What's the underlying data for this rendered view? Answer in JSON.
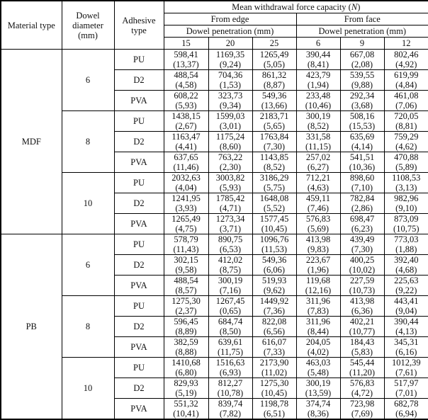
{
  "table": {
    "headers": {
      "material_type": "Material type",
      "dowel_diameter": "Dowel diameter (mm)",
      "adhesive_type": "Adhesive type",
      "capacity_prefix": "Mean withdrawal force capacity (",
      "capacity_symbol": "N",
      "capacity_suffix": ")",
      "from_edge": "From edge",
      "from_face": "From face",
      "penetration_edge": "Dowel penetration (mm)",
      "penetration_face": "Dowel penetration (mm)",
      "depths": [
        "15",
        "20",
        "25",
        "6",
        "9",
        "12"
      ]
    },
    "materials": [
      {
        "name": "MDF",
        "groups": [
          {
            "diameter": "6",
            "rows": [
              {
                "adhesive": "PU",
                "cells": [
                  {
                    "mean": "598,41",
                    "cv": "(13,37)"
                  },
                  {
                    "mean": "1169,35",
                    "cv": "(9,24)"
                  },
                  {
                    "mean": "1265,49",
                    "cv": "(5,05)"
                  },
                  {
                    "mean": "390,44",
                    "cv": "(8,41)"
                  },
                  {
                    "mean": "667,08",
                    "cv": "(2,08)"
                  },
                  {
                    "mean": "802,46",
                    "cv": "(4,92)"
                  }
                ]
              },
              {
                "adhesive": "D2",
                "cells": [
                  {
                    "mean": "488,54",
                    "cv": "(4,58)"
                  },
                  {
                    "mean": "704,36",
                    "cv": "(1,53)"
                  },
                  {
                    "mean": "861,32",
                    "cv": "(8,87)"
                  },
                  {
                    "mean": "423,79",
                    "cv": "(1,94)"
                  },
                  {
                    "mean": "539,55",
                    "cv": "(9,88)"
                  },
                  {
                    "mean": "619,99",
                    "cv": "(4,84)"
                  }
                ]
              },
              {
                "adhesive": "PVA",
                "cells": [
                  {
                    "mean": "608,22",
                    "cv": "(5,93)"
                  },
                  {
                    "mean": "323,73",
                    "cv": "(9,34)"
                  },
                  {
                    "mean": "549,36",
                    "cv": "(13,66)"
                  },
                  {
                    "mean": "233,48",
                    "cv": "(10,46)"
                  },
                  {
                    "mean": "292,34",
                    "cv": "(3,68)"
                  },
                  {
                    "mean": "461,08",
                    "cv": "(7,06)"
                  }
                ]
              }
            ]
          },
          {
            "diameter": "8",
            "rows": [
              {
                "adhesive": "PU",
                "cells": [
                  {
                    "mean": "1438,15",
                    "cv": "(2,67)"
                  },
                  {
                    "mean": "1599,03",
                    "cv": "(3,01)"
                  },
                  {
                    "mean": "2183,71",
                    "cv": "(5,65)"
                  },
                  {
                    "mean": "300,19",
                    "cv": "(8,52)"
                  },
                  {
                    "mean": "508,16",
                    "cv": "(15,53)"
                  },
                  {
                    "mean": "720,05",
                    "cv": "(8,81)"
                  }
                ]
              },
              {
                "adhesive": "D2",
                "cells": [
                  {
                    "mean": "1163,47",
                    "cv": "(4,41)"
                  },
                  {
                    "mean": "1175,24",
                    "cv": "(8,60)"
                  },
                  {
                    "mean": "1763,84",
                    "cv": "(7,30)"
                  },
                  {
                    "mean": "331,58",
                    "cv": "(11,15)"
                  },
                  {
                    "mean": "635,69",
                    "cv": "(4,14)"
                  },
                  {
                    "mean": "759,29",
                    "cv": "(4,62)"
                  }
                ]
              },
              {
                "adhesive": "PVA",
                "cells": [
                  {
                    "mean": "637,65",
                    "cv": "(11,46)"
                  },
                  {
                    "mean": "763,22",
                    "cv": "(2,30)"
                  },
                  {
                    "mean": "1143,85",
                    "cv": "(8,52)"
                  },
                  {
                    "mean": "257,02",
                    "cv": "(6,27)"
                  },
                  {
                    "mean": "541,51",
                    "cv": "(10,36)"
                  },
                  {
                    "mean": "470,88",
                    "cv": "(5,89)"
                  }
                ]
              }
            ]
          },
          {
            "diameter": "10",
            "rows": [
              {
                "adhesive": "PU",
                "cells": [
                  {
                    "mean": "2032,63",
                    "cv": "(4,04)"
                  },
                  {
                    "mean": "3003,82",
                    "cv": "(5,93)"
                  },
                  {
                    "mean": "3186,29",
                    "cv": "(5,75)"
                  },
                  {
                    "mean": "712,21",
                    "cv": "(4,63)"
                  },
                  {
                    "mean": "898,60",
                    "cv": "(7,10)"
                  },
                  {
                    "mean": "1108,53",
                    "cv": "(3,13)"
                  }
                ]
              },
              {
                "adhesive": "D2",
                "cells": [
                  {
                    "mean": "1241,95",
                    "cv": "(3,93)"
                  },
                  {
                    "mean": "1785,42",
                    "cv": "(4,71)"
                  },
                  {
                    "mean": "1648,08",
                    "cv": "(5,52)"
                  },
                  {
                    "mean": "459,11",
                    "cv": "(7,46)"
                  },
                  {
                    "mean": "782,84",
                    "cv": "(2,86)"
                  },
                  {
                    "mean": "982,96",
                    "cv": "(9,10)"
                  }
                ]
              },
              {
                "adhesive": "PVA",
                "cells": [
                  {
                    "mean": "1265,49",
                    "cv": "(4,75)"
                  },
                  {
                    "mean": "1273,34",
                    "cv": "(3,71)"
                  },
                  {
                    "mean": "1577,45",
                    "cv": "(10,45)"
                  },
                  {
                    "mean": "576,83",
                    "cv": "(5,69)"
                  },
                  {
                    "mean": "698,47",
                    "cv": "(6,23)"
                  },
                  {
                    "mean": "873,09",
                    "cv": "(10,75)"
                  }
                ]
              }
            ]
          }
        ]
      },
      {
        "name": "PB",
        "groups": [
          {
            "diameter": "6",
            "rows": [
              {
                "adhesive": "PU",
                "cells": [
                  {
                    "mean": "578,79",
                    "cv": "(11,43)"
                  },
                  {
                    "mean": "890,75",
                    "cv": "(6,53)"
                  },
                  {
                    "mean": "1096,76",
                    "cv": "(11,53)"
                  },
                  {
                    "mean": "413,98",
                    "cv": "(9,83)"
                  },
                  {
                    "mean": "439,49",
                    "cv": "(7,30)"
                  },
                  {
                    "mean": "773,03",
                    "cv": "(1,88)"
                  }
                ]
              },
              {
                "adhesive": "D2",
                "cells": [
                  {
                    "mean": "302,15",
                    "cv": "(9,58)"
                  },
                  {
                    "mean": "412,02",
                    "cv": "(8,75)"
                  },
                  {
                    "mean": "549,36",
                    "cv": "(6,06)"
                  },
                  {
                    "mean": "223,67",
                    "cv": "(1,96)"
                  },
                  {
                    "mean": "400,25",
                    "cv": "(10,02)"
                  },
                  {
                    "mean": "392,40",
                    "cv": "(4,68)"
                  }
                ]
              },
              {
                "adhesive": "PVA",
                "cells": [
                  {
                    "mean": "488,54",
                    "cv": "(8,57)"
                  },
                  {
                    "mean": "300,19",
                    "cv": "(7,16)"
                  },
                  {
                    "mean": "519,93",
                    "cv": "(9,62)"
                  },
                  {
                    "mean": "119,68",
                    "cv": "(12,16)"
                  },
                  {
                    "mean": "227,59",
                    "cv": "(10,73)"
                  },
                  {
                    "mean": "225,63",
                    "cv": "(9,22)"
                  }
                ]
              }
            ]
          },
          {
            "diameter": "8",
            "rows": [
              {
                "adhesive": "PU",
                "cells": [
                  {
                    "mean": "1275,30",
                    "cv": "(2,37)"
                  },
                  {
                    "mean": "1267,45",
                    "cv": "(0,65)"
                  },
                  {
                    "mean": "1449,92",
                    "cv": "(7,36)"
                  },
                  {
                    "mean": "311,96",
                    "cv": "(7,83)"
                  },
                  {
                    "mean": "413,98",
                    "cv": "(6,36)"
                  },
                  {
                    "mean": "443,41",
                    "cv": "(9,04)"
                  }
                ]
              },
              {
                "adhesive": "D2",
                "cells": [
                  {
                    "mean": "596,45",
                    "cv": "(8,89)"
                  },
                  {
                    "mean": "684,74",
                    "cv": "(8,50)"
                  },
                  {
                    "mean": "822,08",
                    "cv": "(6,56)"
                  },
                  {
                    "mean": "311,96",
                    "cv": "(8,44)"
                  },
                  {
                    "mean": "402,21",
                    "cv": "(10,77)"
                  },
                  {
                    "mean": "390,44",
                    "cv": "(4,13)"
                  }
                ]
              },
              {
                "adhesive": "PVA",
                "cells": [
                  {
                    "mean": "382,59",
                    "cv": "(8,88)"
                  },
                  {
                    "mean": "639,61",
                    "cv": "(11,75)"
                  },
                  {
                    "mean": "616,07",
                    "cv": "(7,33)"
                  },
                  {
                    "mean": "204,05",
                    "cv": "(4,02)"
                  },
                  {
                    "mean": "184,43",
                    "cv": "(5,83)"
                  },
                  {
                    "mean": "345,31",
                    "cv": "(6,16)"
                  }
                ]
              }
            ]
          },
          {
            "diameter": "10",
            "rows": [
              {
                "adhesive": "PU",
                "cells": [
                  {
                    "mean": "1410,68",
                    "cv": "(6,80)"
                  },
                  {
                    "mean": "1516,63",
                    "cv": "(6,93)"
                  },
                  {
                    "mean": "2173,90",
                    "cv": "(11,02)"
                  },
                  {
                    "mean": "463,03",
                    "cv": "(5,48)"
                  },
                  {
                    "mean": "545,44",
                    "cv": "(11,20)"
                  },
                  {
                    "mean": "1012,39",
                    "cv": "(7,61)"
                  }
                ]
              },
              {
                "adhesive": "D2",
                "cells": [
                  {
                    "mean": "829,93",
                    "cv": "(5,19)"
                  },
                  {
                    "mean": "812,27",
                    "cv": "(10,78)"
                  },
                  {
                    "mean": "1275,30",
                    "cv": "(10,45)"
                  },
                  {
                    "mean": "300,19",
                    "cv": "(13,59)"
                  },
                  {
                    "mean": "576,83",
                    "cv": "(4,72)"
                  },
                  {
                    "mean": "517,97",
                    "cv": "(7,01)"
                  }
                ]
              },
              {
                "adhesive": "PVA",
                "cells": [
                  {
                    "mean": "551,32",
                    "cv": "(10,41)"
                  },
                  {
                    "mean": "839,74",
                    "cv": "(7,82)"
                  },
                  {
                    "mean": "1198,78",
                    "cv": "(6,51)"
                  },
                  {
                    "mean": "374,74",
                    "cv": "(8,36)"
                  },
                  {
                    "mean": "723,98",
                    "cv": "(7,69)"
                  },
                  {
                    "mean": "682,78",
                    "cv": "(6,94)"
                  }
                ]
              }
            ]
          }
        ]
      }
    ]
  }
}
